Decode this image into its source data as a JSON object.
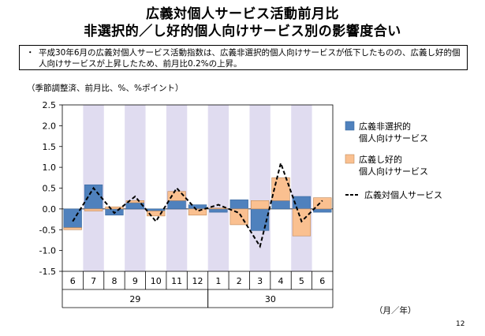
{
  "title_line1": "広義対個人サービス活動前月比",
  "title_line2": "非選択的／し好的個人向けサービス別の影響度合い",
  "summary": {
    "bullet": "・",
    "text": "平成30年6月の広義対個人サービス活動指数は、広義非選択的個人向けサービスが低下したものの、広義し好的個人向けサービスが上昇したため、前月比0.2%の上昇。"
  },
  "note": "（季節調整済、前月比、%、%ポイント）",
  "unit_label": "（月／年）",
  "page_number": "12",
  "colors": {
    "nonselective": "#4f81bd",
    "discretionary": "#fac090",
    "total": "#000000",
    "stripe": "#e0dcf0",
    "axis": "#000000"
  },
  "chart_data": {
    "type": "bar",
    "stacked": true,
    "categories": [
      "6",
      "7",
      "8",
      "9",
      "10",
      "11",
      "12",
      "1",
      "2",
      "3",
      "4",
      "5",
      "6"
    ],
    "year_labels": [
      {
        "label": "29",
        "from": 0,
        "to": 6
      },
      {
        "label": "30",
        "from": 7,
        "to": 12
      }
    ],
    "series": [
      {
        "name": "広義非選択的\n個人向けサービス",
        "type": "bar",
        "color": "#4f81bd",
        "values": [
          -0.45,
          0.58,
          -0.15,
          0.15,
          -0.05,
          0.2,
          0.1,
          -0.08,
          0.22,
          -0.52,
          0.2,
          0.3,
          -0.08
        ]
      },
      {
        "name": "広義し好的\n個人向けサービス",
        "type": "bar",
        "color": "#fac090",
        "values": [
          -0.05,
          -0.05,
          0.05,
          0.05,
          -0.12,
          0.22,
          -0.15,
          0.02,
          -0.38,
          0.2,
          0.55,
          -0.65,
          0.27
        ]
      },
      {
        "name": "広義対個人サービス",
        "type": "line",
        "style": "dashed",
        "color": "#000000",
        "values": [
          -0.3,
          0.5,
          -0.1,
          0.3,
          -0.3,
          0.5,
          -0.05,
          0.1,
          -0.1,
          -0.9,
          1.1,
          -0.3,
          0.2
        ]
      }
    ],
    "ylim": [
      -1.5,
      2.5
    ],
    "yticks": [
      -1.5,
      -1.0,
      -0.5,
      0.0,
      0.5,
      1.0,
      1.5,
      2.0,
      2.5
    ],
    "ytick_labels": [
      "-1.5",
      "-1.0",
      "-0.5",
      "0.0",
      "0.5",
      "1.0",
      "1.5",
      "2.0",
      "2.5"
    ],
    "grid": false,
    "alternating_stripes": true,
    "legend_position": "right"
  }
}
